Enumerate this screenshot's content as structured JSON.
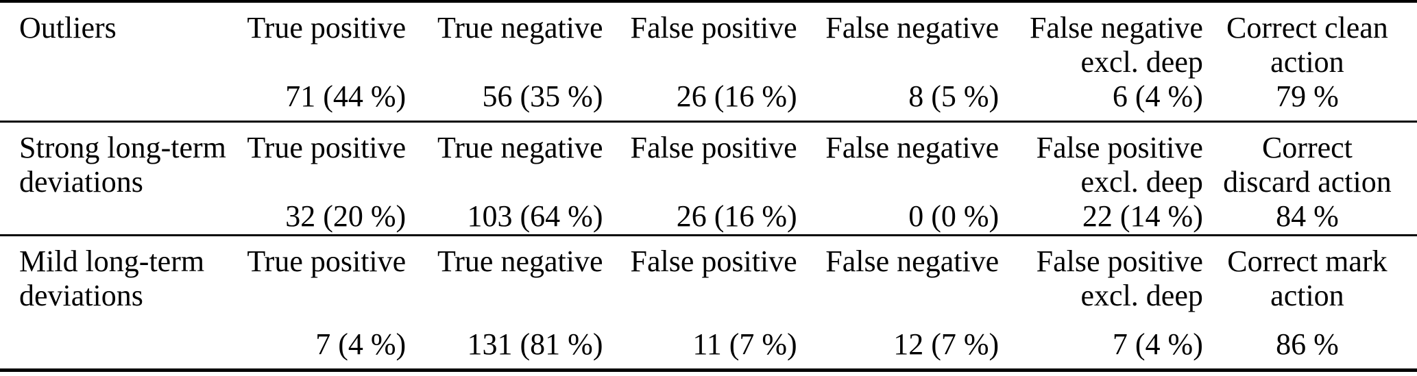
{
  "colors": {
    "background": "#ffffff",
    "text": "#000000",
    "rule": "#000000"
  },
  "table": {
    "groups": [
      {
        "label_line1": "Outliers",
        "label_line2": "",
        "columns": [
          {
            "header_line1": "True positive",
            "header_line2": "",
            "value": "71 (44 %)"
          },
          {
            "header_line1": "True negative",
            "header_line2": "",
            "value": "56 (35 %)"
          },
          {
            "header_line1": "False positive",
            "header_line2": "",
            "value": "26 (16 %)"
          },
          {
            "header_line1": "False negative",
            "header_line2": "",
            "value": "8 (5 %)"
          },
          {
            "header_line1": "False negative",
            "header_line2": "excl. deep",
            "value": "6 (4 %)"
          },
          {
            "header_line1": "Correct clean",
            "header_line2": "action",
            "value": "79 %"
          }
        ]
      },
      {
        "label_line1": "Strong long-term",
        "label_line2": "deviations",
        "columns": [
          {
            "header_line1": "True positive",
            "header_line2": "",
            "value": "32 (20 %)"
          },
          {
            "header_line1": "True negative",
            "header_line2": "",
            "value": "103 (64 %)"
          },
          {
            "header_line1": "False positive",
            "header_line2": "",
            "value": "26 (16 %)"
          },
          {
            "header_line1": "False negative",
            "header_line2": "",
            "value": "0 (0 %)"
          },
          {
            "header_line1": "False positive",
            "header_line2": "excl. deep",
            "value": "22 (14 %)"
          },
          {
            "header_line1": "Correct",
            "header_line2": "discard action",
            "value": "84 %"
          }
        ]
      },
      {
        "label_line1": "Mild long-term",
        "label_line2": "deviations",
        "columns": [
          {
            "header_line1": "True positive",
            "header_line2": "",
            "value": "7 (4 %)"
          },
          {
            "header_line1": "True negative",
            "header_line2": "",
            "value": "131 (81 %)"
          },
          {
            "header_line1": "False positive",
            "header_line2": "",
            "value": "11 (7 %)"
          },
          {
            "header_line1": "False negative",
            "header_line2": "",
            "value": "12 (7 %)"
          },
          {
            "header_line1": "False positive",
            "header_line2": "excl. deep",
            "value": "7 (4 %)"
          },
          {
            "header_line1": "Correct mark",
            "header_line2": "action",
            "value": "86 %"
          }
        ]
      }
    ]
  }
}
